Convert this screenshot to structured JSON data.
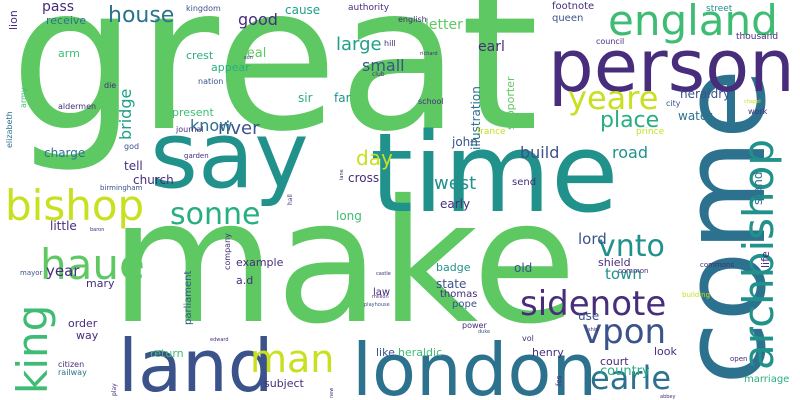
{
  "palette": {
    "lime": "#5ec962",
    "green": "#3fbc73",
    "teal": "#21918c",
    "blue": "#2c728e",
    "navy": "#3b528b",
    "indigo": "#472d7b",
    "purple": "#440154",
    "yellow": "#c8e020",
    "seafoam": "#28ae80",
    "aqua": "#1fa088"
  },
  "words": [
    {
      "text": "great"
    },
    {
      "text": "make"
    },
    {
      "text": "come"
    },
    {
      "text": "say"
    },
    {
      "text": "time"
    },
    {
      "text": "person"
    },
    {
      "text": "london"
    },
    {
      "text": "land"
    },
    {
      "text": "england"
    },
    {
      "text": "bishop"
    },
    {
      "text": "archbishop"
    },
    {
      "text": "king"
    },
    {
      "text": "haue"
    },
    {
      "text": "sonne"
    },
    {
      "text": "man"
    },
    {
      "text": "yeare"
    },
    {
      "text": "sidenote"
    },
    {
      "text": "vpon"
    },
    {
      "text": "earle"
    },
    {
      "text": "vnto"
    },
    {
      "text": "house"
    },
    {
      "text": "place"
    },
    {
      "text": "day"
    },
    {
      "text": "large"
    },
    {
      "text": "west"
    },
    {
      "text": "river"
    },
    {
      "text": "good"
    },
    {
      "text": "know"
    },
    {
      "text": "small"
    },
    {
      "text": "bridge"
    },
    {
      "text": "build"
    },
    {
      "text": "road"
    },
    {
      "text": "year"
    },
    {
      "text": "town"
    },
    {
      "text": "lord"
    },
    {
      "text": "country"
    },
    {
      "text": "pass"
    },
    {
      "text": "letter"
    },
    {
      "text": "earl"
    },
    {
      "text": "water"
    },
    {
      "text": "cause"
    },
    {
      "text": "seal"
    },
    {
      "text": "heraldry"
    },
    {
      "text": "illustration"
    },
    {
      "text": "supporter"
    },
    {
      "text": "receive"
    },
    {
      "text": "crest"
    },
    {
      "text": "appear"
    },
    {
      "text": "present"
    },
    {
      "text": "sir"
    },
    {
      "text": "far"
    },
    {
      "text": "charge"
    },
    {
      "text": "tell"
    },
    {
      "text": "church"
    },
    {
      "text": "john"
    },
    {
      "text": "cross"
    },
    {
      "text": "long"
    },
    {
      "text": "early"
    },
    {
      "text": "stand"
    },
    {
      "text": "shield"
    },
    {
      "text": "little"
    },
    {
      "text": "old"
    },
    {
      "text": "state"
    },
    {
      "text": "badge"
    },
    {
      "text": "use"
    },
    {
      "text": "thomas"
    },
    {
      "text": "pope"
    },
    {
      "text": "court"
    },
    {
      "text": "look"
    },
    {
      "text": "like"
    },
    {
      "text": "heraldic"
    },
    {
      "text": "henry"
    },
    {
      "text": "return"
    },
    {
      "text": "subject"
    },
    {
      "text": "example"
    },
    {
      "text": "a.d"
    },
    {
      "text": "mary"
    },
    {
      "text": "order"
    },
    {
      "text": "way"
    },
    {
      "text": "arm"
    },
    {
      "text": "lion"
    },
    {
      "text": "send"
    },
    {
      "text": "life"
    },
    {
      "text": "marriage"
    },
    {
      "text": "parliament"
    },
    {
      "text": "company"
    },
    {
      "text": "law"
    },
    {
      "text": "footnote"
    },
    {
      "text": "queen"
    },
    {
      "text": "thousand"
    },
    {
      "text": "council"
    },
    {
      "text": "street"
    },
    {
      "text": "english"
    },
    {
      "text": "kingdom"
    },
    {
      "text": "authority"
    },
    {
      "text": "hill"
    },
    {
      "text": "nation"
    },
    {
      "text": "school"
    },
    {
      "text": "france"
    },
    {
      "text": "prince"
    },
    {
      "text": "city"
    },
    {
      "text": "work"
    },
    {
      "text": "elizabeth"
    },
    {
      "text": "aldermen"
    },
    {
      "text": "army"
    },
    {
      "text": "die"
    },
    {
      "text": "journal"
    },
    {
      "text": "god"
    },
    {
      "text": "birmingham"
    },
    {
      "text": "garden"
    },
    {
      "text": "citizen"
    },
    {
      "text": "railway"
    },
    {
      "text": "mayor"
    },
    {
      "text": "power"
    },
    {
      "text": "vol"
    },
    {
      "text": "commons"
    },
    {
      "text": "common"
    },
    {
      "text": "building"
    },
    {
      "text": "open"
    },
    {
      "text": "fos"
    },
    {
      "text": "play"
    },
    {
      "text": "club"
    },
    {
      "text": "son"
    },
    {
      "text": "richard"
    },
    {
      "text": "hall"
    },
    {
      "text": "lane"
    },
    {
      "text": "baron"
    },
    {
      "text": "castle"
    },
    {
      "text": "million"
    },
    {
      "text": "playhouse"
    },
    {
      "text": "edward"
    },
    {
      "text": "new"
    },
    {
      "text": "chapel"
    },
    {
      "text": "duke"
    },
    {
      "text": "ship"
    },
    {
      "text": "abbey"
    }
  ]
}
